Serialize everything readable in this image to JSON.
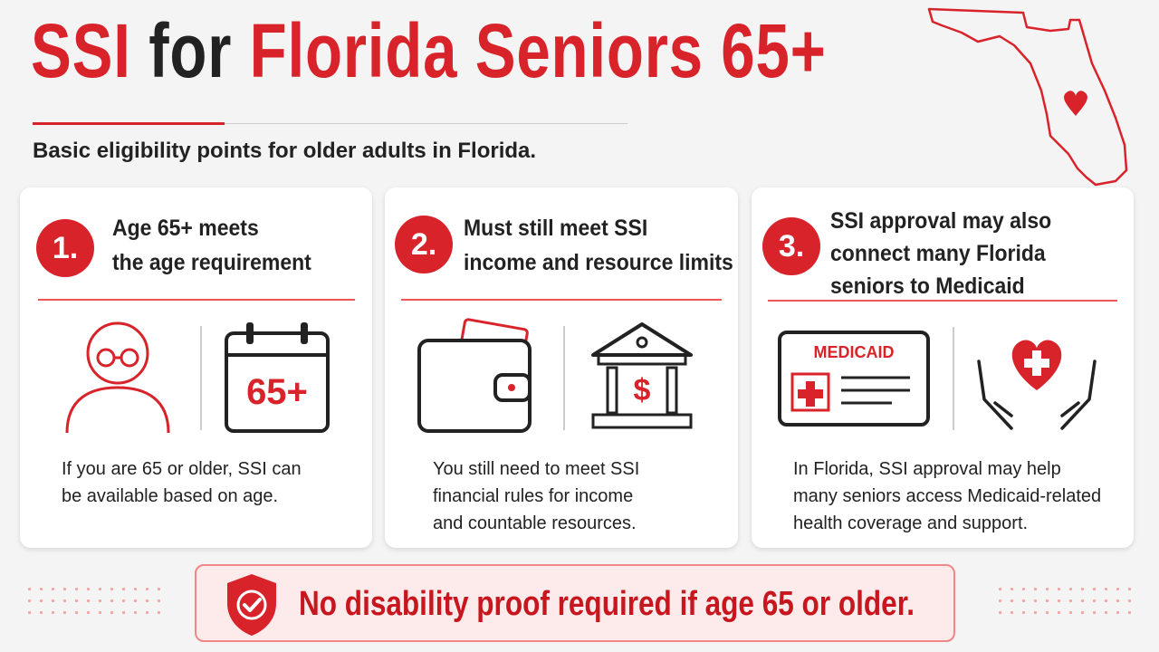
{
  "header": {
    "title_parts": [
      "SSI",
      "for",
      "Florida Seniors 65+"
    ],
    "subtitle": "Basic eligibility points for older adults in Florida."
  },
  "cards": [
    {
      "number": "1.",
      "title": [
        "Age 65+ meets",
        "the age requirement"
      ],
      "icon_text": "65+",
      "body": [
        "If you are 65 or older, SSI can",
        "be available based on age."
      ]
    },
    {
      "number": "2.",
      "title": [
        "Must still meet SSI",
        "income and resource limits"
      ],
      "icon_text": "$",
      "body": [
        "You still need to meet SSI",
        "financial rules for income",
        "and countable resources."
      ]
    },
    {
      "number": "3.",
      "title": [
        "SSI approval may also",
        "connect many Florida",
        "seniors to Medicaid"
      ],
      "icon_text": "MEDICAID",
      "body": [
        "In Florida, SSI approval may help",
        "many seniors access Medicaid-related",
        "health coverage and support."
      ]
    }
  ],
  "footer": {
    "text": "No disability proof required if age 65 or older."
  }
}
